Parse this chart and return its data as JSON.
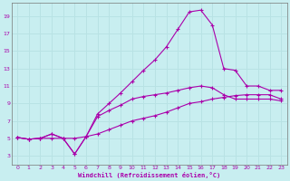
{
  "xlabel": "Windchill (Refroidissement éolien,°C)",
  "bg_color": "#c8eef0",
  "grid_color": "#b8e2e4",
  "line_color": "#aa00aa",
  "x_ticks": [
    0,
    1,
    2,
    3,
    4,
    5,
    6,
    7,
    8,
    9,
    10,
    11,
    12,
    13,
    14,
    15,
    16,
    17,
    18,
    19,
    20,
    21,
    22,
    23
  ],
  "y_ticks": [
    3,
    5,
    7,
    9,
    11,
    13,
    15,
    17,
    19
  ],
  "xlim": [
    -0.5,
    23.5
  ],
  "ylim": [
    2,
    20.5
  ],
  "line1_x": [
    0,
    1,
    2,
    3,
    4,
    5,
    6,
    7,
    8,
    9,
    10,
    11,
    12,
    13,
    14,
    15,
    16,
    17,
    18,
    19,
    20,
    21,
    22,
    23
  ],
  "line1_y": [
    5.1,
    4.9,
    5.0,
    5.5,
    5.0,
    3.2,
    5.2,
    7.8,
    9.0,
    10.2,
    11.5,
    12.8,
    14.0,
    15.5,
    17.5,
    19.5,
    19.7,
    18.0,
    13.0,
    12.8,
    11.0,
    11.0,
    10.5,
    10.5
  ],
  "line2_x": [
    0,
    1,
    2,
    3,
    4,
    5,
    6,
    7,
    8,
    9,
    10,
    11,
    12,
    13,
    14,
    15,
    16,
    17,
    18,
    19,
    20,
    21,
    22,
    23
  ],
  "line2_y": [
    5.1,
    4.9,
    5.0,
    5.5,
    5.0,
    3.2,
    5.2,
    7.5,
    8.2,
    8.8,
    9.5,
    9.8,
    10.0,
    10.2,
    10.5,
    10.8,
    11.0,
    10.8,
    10.0,
    9.5,
    9.5,
    9.5,
    9.5,
    9.3
  ],
  "line3_x": [
    0,
    1,
    2,
    3,
    4,
    5,
    6,
    7,
    8,
    9,
    10,
    11,
    12,
    13,
    14,
    15,
    16,
    17,
    18,
    19,
    20,
    21,
    22,
    23
  ],
  "line3_y": [
    5.1,
    4.9,
    5.0,
    5.0,
    5.0,
    5.0,
    5.2,
    5.5,
    6.0,
    6.5,
    7.0,
    7.3,
    7.6,
    8.0,
    8.5,
    9.0,
    9.2,
    9.5,
    9.7,
    9.9,
    10.0,
    10.0,
    10.0,
    9.5
  ]
}
